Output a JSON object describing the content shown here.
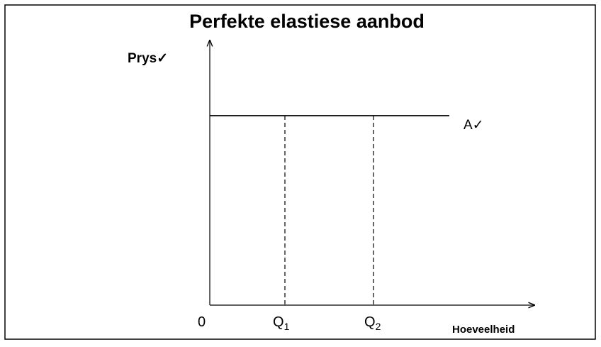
{
  "title": "Perfekte elastiese aanbod",
  "y_axis_label": "Prys✓",
  "x_axis_label": "Hoeveelheid",
  "origin_label": "0",
  "curve_label": "A✓",
  "quantities": [
    {
      "letter": "Q",
      "subscript": "1"
    },
    {
      "letter": "Q",
      "subscript": "2"
    }
  ]
}
